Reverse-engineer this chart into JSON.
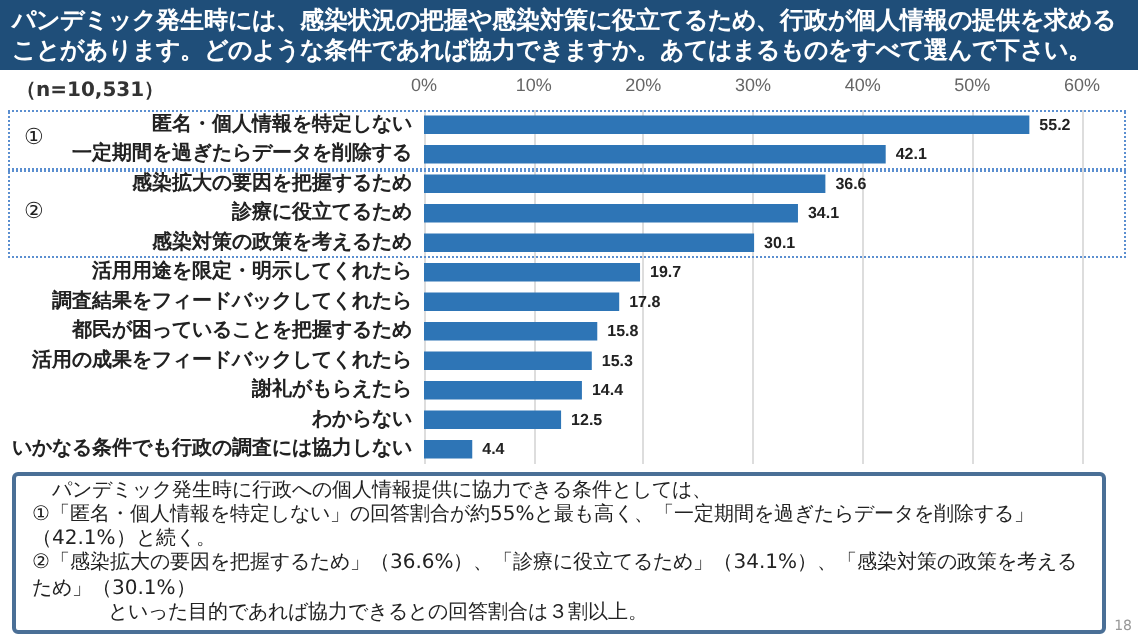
{
  "chart_data": {
    "type": "bar",
    "orientation": "horizontal",
    "title": "パンデミック発生時には、感染状況の把握や感染対策に役立てるため、行政が個人情報の提供を求めることがあります。どのような条件であれば協力できますか。あてはまるものをすべて選んで下さい。",
    "categories": [
      "匿名・個人情報を特定しない",
      "一定期間を過ぎたらデータを削除する",
      "感染拡大の要因を把握するため",
      "診療に役立てるため",
      "感染対策の政策を考えるため",
      "活用用途を限定・明示してくれたら",
      "調査結果をフィードバックしてくれたら",
      "都民が困っていることを把握するため",
      "活用の成果をフィードバックしてくれたら",
      "謝礼がもらえたら",
      "わからない",
      "いかなる条件でも行政の調査には協力しない"
    ],
    "series": [
      {
        "color": "#2e75b6",
        "values": [
          55.2,
          42.1,
          36.6,
          34.1,
          30.1,
          19.7,
          17.8,
          15.8,
          15.3,
          14.4,
          12.5,
          4.4
        ]
      }
    ],
    "data_labels": true,
    "xlim": [
      0,
      60
    ],
    "xticks": [
      {
        "value": 0,
        "label": "0%"
      },
      {
        "value": 10,
        "label": "10%"
      },
      {
        "value": 20,
        "label": "20%"
      },
      {
        "value": 30,
        "label": "30%"
      },
      {
        "value": 40,
        "label": "40%"
      },
      {
        "value": 50,
        "label": "50%"
      },
      {
        "value": 60,
        "label": "60%"
      }
    ],
    "grid": "x",
    "annotations": [
      "（n=10,531）",
      "①",
      "②",
      "パンデミック発生時に行政への個人情報提供に協力できる条件としては、",
      "①「匿名・個人情報を特定しない」の回答割合が約55%と最も高く、「一定期間を過ぎたらデータを削除する」（42.1%）と続く。",
      "②「感染拡大の要因を把握するため」（36.6%）、「診療に役立てるため」（34.1%）、「感染対策の政策を考えるため」（30.1%）",
      "といった目的であれば協力できるとの回答割合は３割以上。",
      "18"
    ]
  }
}
